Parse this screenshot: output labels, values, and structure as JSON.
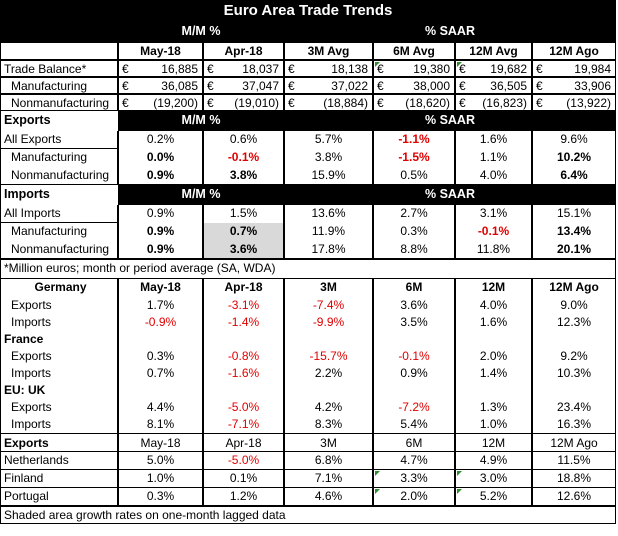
{
  "title": "Euro Area Trade Trends",
  "hdr1": {
    "mm": "M/M %",
    "saar": "% SAAR"
  },
  "cols1": [
    "May-18",
    "Apr-18",
    "3M Avg",
    "6M Avg",
    "12M Avg",
    "12M Ago"
  ],
  "euro_sign": "€",
  "balance_rows": [
    {
      "label": "Trade Balance*",
      "values": [
        "16,885",
        "18,037",
        "18,138",
        "19,380",
        "19,682",
        "19,984"
      ]
    },
    {
      "label": "Manufacturing",
      "values": [
        "36,085",
        "37,047",
        "37,022",
        "38,000",
        "36,505",
        "33,906"
      ]
    },
    {
      "label": "Nonmanufacturing",
      "values": [
        "(19,200)",
        "(19,010)",
        "(18,884)",
        "(18,620)",
        "(16,823)",
        "(13,922)"
      ]
    }
  ],
  "exports_section": {
    "label": "Exports",
    "mm": "M/M %",
    "saar": "% SAAR"
  },
  "exports_rows": [
    {
      "label": "All Exports",
      "values": [
        "0.2%",
        "0.6%",
        "5.7%",
        "-1.1%",
        "1.6%",
        "9.6%"
      ]
    },
    {
      "label": "Manufacturing",
      "values": [
        "0.0%",
        "-0.1%",
        "3.8%",
        "-1.5%",
        "1.1%",
        "10.2%"
      ]
    },
    {
      "label": "Nonmanufacturing",
      "values": [
        "0.9%",
        "3.8%",
        "15.9%",
        "0.5%",
        "4.0%",
        "6.4%"
      ]
    }
  ],
  "imports_section": {
    "label": "Imports",
    "mm": "M/M %",
    "saar": "% SAAR"
  },
  "imports_rows": [
    {
      "label": "All Imports",
      "values": [
        "0.9%",
        "1.5%",
        "13.6%",
        "2.7%",
        "3.1%",
        "15.1%"
      ]
    },
    {
      "label": "Manufacturing",
      "values": [
        "0.9%",
        "0.7%",
        "11.9%",
        "0.3%",
        "-0.1%",
        "13.4%"
      ]
    },
    {
      "label": "Nonmanufacturing",
      "values": [
        "0.9%",
        "3.6%",
        "17.8%",
        "8.8%",
        "11.8%",
        "20.1%"
      ]
    }
  ],
  "footnote1": "*Million euros; month or period average (SA, WDA)",
  "cols2": [
    "May-18",
    "Apr-18",
    "3M",
    "6M",
    "12M",
    "12M Ago"
  ],
  "countries": [
    {
      "name": "Germany",
      "rows": [
        {
          "label": "Exports",
          "values": [
            "1.7%",
            "-3.1%",
            "-7.4%",
            "3.6%",
            "4.0%",
            "9.0%"
          ]
        },
        {
          "label": "Imports",
          "values": [
            "-0.9%",
            "-1.4%",
            "-9.9%",
            "3.5%",
            "1.6%",
            "12.3%"
          ]
        }
      ]
    },
    {
      "name": "France",
      "rows": [
        {
          "label": "Exports",
          "values": [
            "0.3%",
            "-0.8%",
            "-15.7%",
            "-0.1%",
            "2.0%",
            "9.2%"
          ]
        },
        {
          "label": "Imports",
          "values": [
            "0.7%",
            "-1.6%",
            "2.2%",
            "0.9%",
            "1.4%",
            "10.3%"
          ]
        }
      ]
    },
    {
      "name": "EU: UK",
      "rows": [
        {
          "label": "Exports",
          "values": [
            "4.4%",
            "-5.0%",
            "4.2%",
            "-7.2%",
            "1.3%",
            "23.4%"
          ]
        },
        {
          "label": "Imports",
          "values": [
            "8.1%",
            "-7.1%",
            "8.3%",
            "5.4%",
            "1.0%",
            "16.3%"
          ]
        }
      ]
    }
  ],
  "exports_by_country": {
    "label": "Exports",
    "cols": [
      "May-18",
      "Apr-18",
      "3M",
      "6M",
      "12M",
      "12M Ago"
    ],
    "rows": [
      {
        "label": "Netherlands",
        "values": [
          "5.0%",
          "-5.0%",
          "6.8%",
          "4.7%",
          "4.9%",
          "11.5%"
        ]
      },
      {
        "label": "Finland",
        "values": [
          "1.0%",
          "0.1%",
          "7.1%",
          "3.3%",
          "3.0%",
          "18.8%"
        ]
      },
      {
        "label": "Portugal",
        "values": [
          "0.3%",
          "1.2%",
          "4.6%",
          "2.0%",
          "5.2%",
          "12.6%"
        ]
      }
    ]
  },
  "footnote2": "Shaded area growth rates on one-month lagged data",
  "colors": {
    "header_bg": "#000000",
    "header_fg": "#ffffff",
    "negative": "#e00000",
    "shade": "#d9d9d9",
    "marker": "#2e8b2e"
  }
}
